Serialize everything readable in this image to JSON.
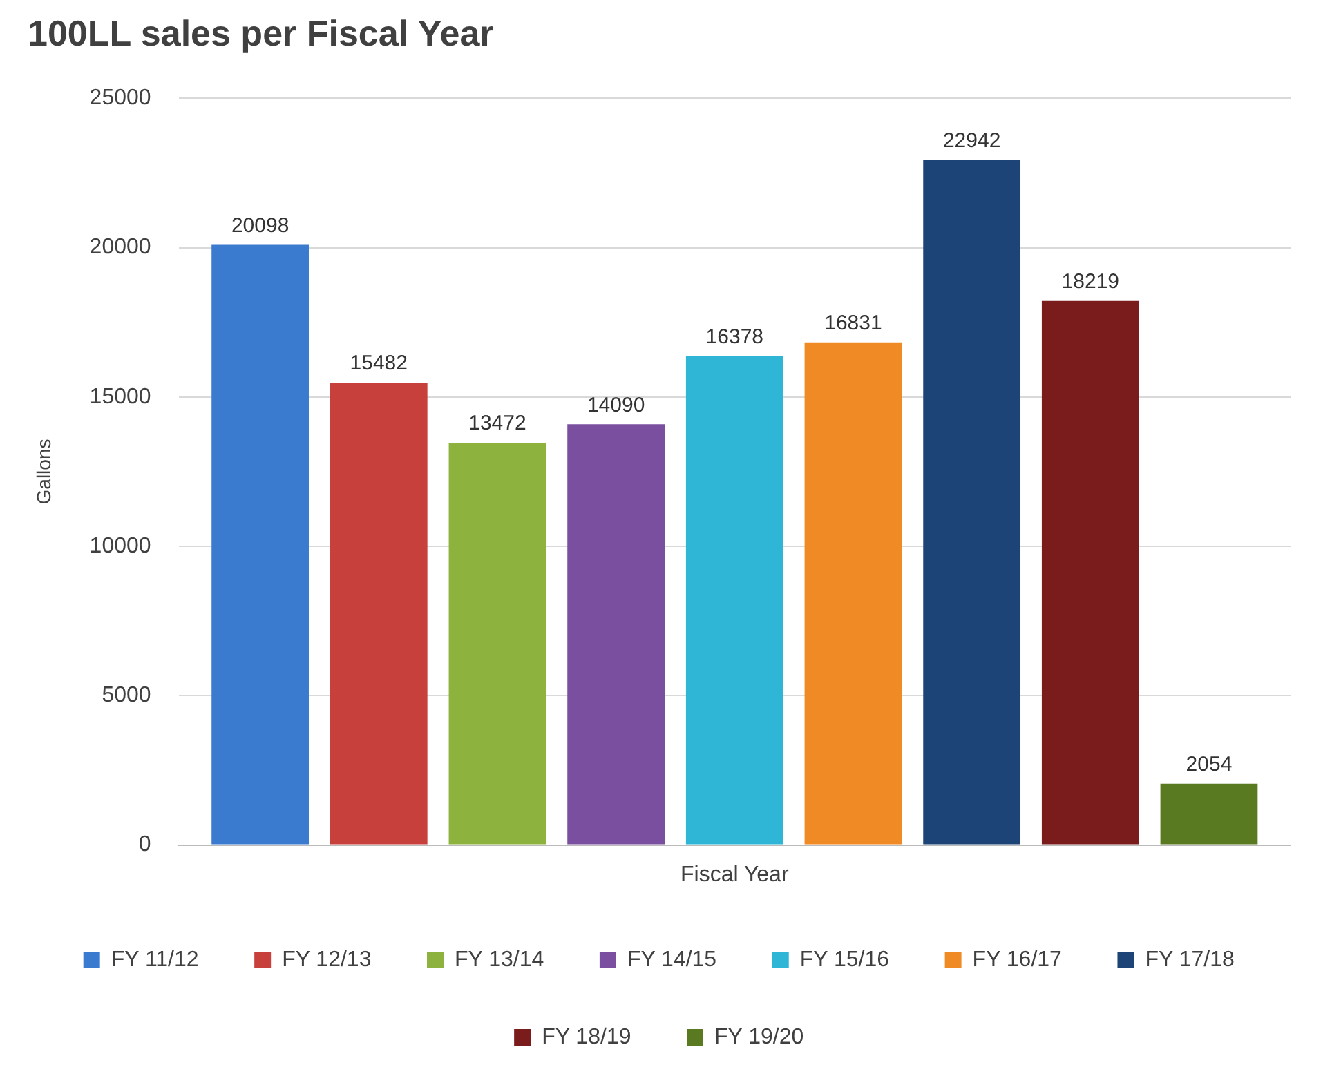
{
  "chart_data": {
    "type": "bar",
    "title": "100LL sales per Fiscal Year",
    "xlabel": "Fiscal Year",
    "ylabel": "Gallons",
    "categories": [
      null
    ],
    "series": [
      {
        "name": "FY 11/12",
        "color": "#3a7bd0",
        "values": [
          20098
        ]
      },
      {
        "name": "FY 12/13",
        "color": "#c8403c",
        "values": [
          15482
        ]
      },
      {
        "name": "FY 13/14",
        "color": "#8db33e",
        "values": [
          13472
        ]
      },
      {
        "name": "FY 14/15",
        "color": "#7a4fa0",
        "values": [
          14090
        ]
      },
      {
        "name": "FY 15/16",
        "color": "#2fb5d5",
        "values": [
          16378
        ]
      },
      {
        "name": "FY 16/17",
        "color": "#f08a24",
        "values": [
          16831
        ]
      },
      {
        "name": "FY 17/18",
        "color": "#1d4476",
        "values": [
          22942
        ]
      },
      {
        "name": "FY 18/19",
        "color": "#7b1c1c",
        "values": [
          18219
        ]
      },
      {
        "name": "FY 19/20",
        "color": "#5a7a22",
        "values": [
          2054
        ]
      }
    ],
    "ylim": [
      0,
      25000
    ],
    "yticks": [
      0,
      5000,
      10000,
      15000,
      20000,
      25000
    ],
    "grid": "y",
    "legend": "bottom",
    "tick_labels": "y",
    "data_labels": true
  }
}
